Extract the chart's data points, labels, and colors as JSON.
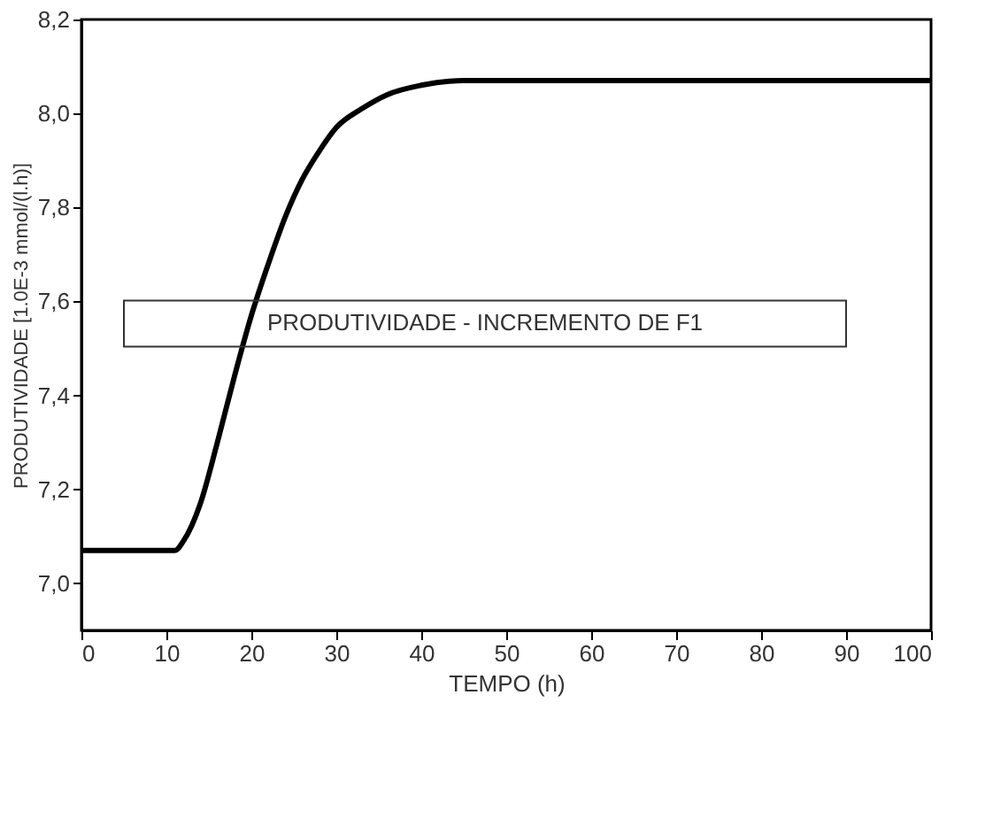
{
  "chart_data": {
    "type": "line",
    "xlabel": "TEMPO (h)",
    "ylabel": "PRODUTIVIDADE [1.0E-3 mmol/(l.h)]",
    "x": [
      0,
      5,
      11,
      12,
      14,
      16,
      18,
      20,
      22,
      24,
      26,
      28,
      30,
      33,
      36,
      40,
      45,
      50,
      60,
      80,
      100
    ],
    "series": [
      {
        "color": "#000000",
        "values": [
          7.07,
          7.07,
          7.07,
          7.09,
          7.17,
          7.3,
          7.44,
          7.57,
          7.68,
          7.78,
          7.86,
          7.92,
          7.97,
          8.01,
          8.04,
          8.06,
          8.07,
          8.07,
          8.07,
          8.07,
          8.07
        ]
      }
    ],
    "annotations": [
      "PRODUTIVIDADE - INCREMENTO DE F1"
    ],
    "xlim": [
      0,
      100
    ],
    "xticks": [
      0,
      10,
      20,
      30,
      40,
      50,
      60,
      70,
      80,
      90,
      100
    ],
    "ylim": [
      6.9,
      8.2
    ],
    "yticks": [
      {
        "value": 7.0,
        "label": "7,0"
      },
      {
        "value": 7.2,
        "label": "7,2"
      },
      {
        "value": 7.4,
        "label": "7,4"
      },
      {
        "value": 7.6,
        "label": "7,6"
      },
      {
        "value": 7.8,
        "label": "7,8"
      },
      {
        "value": 8.0,
        "label": "8,0"
      },
      {
        "value": 8.2,
        "label": "8,2"
      }
    ],
    "grid": false,
    "marker": "none",
    "line_style": "solid"
  }
}
